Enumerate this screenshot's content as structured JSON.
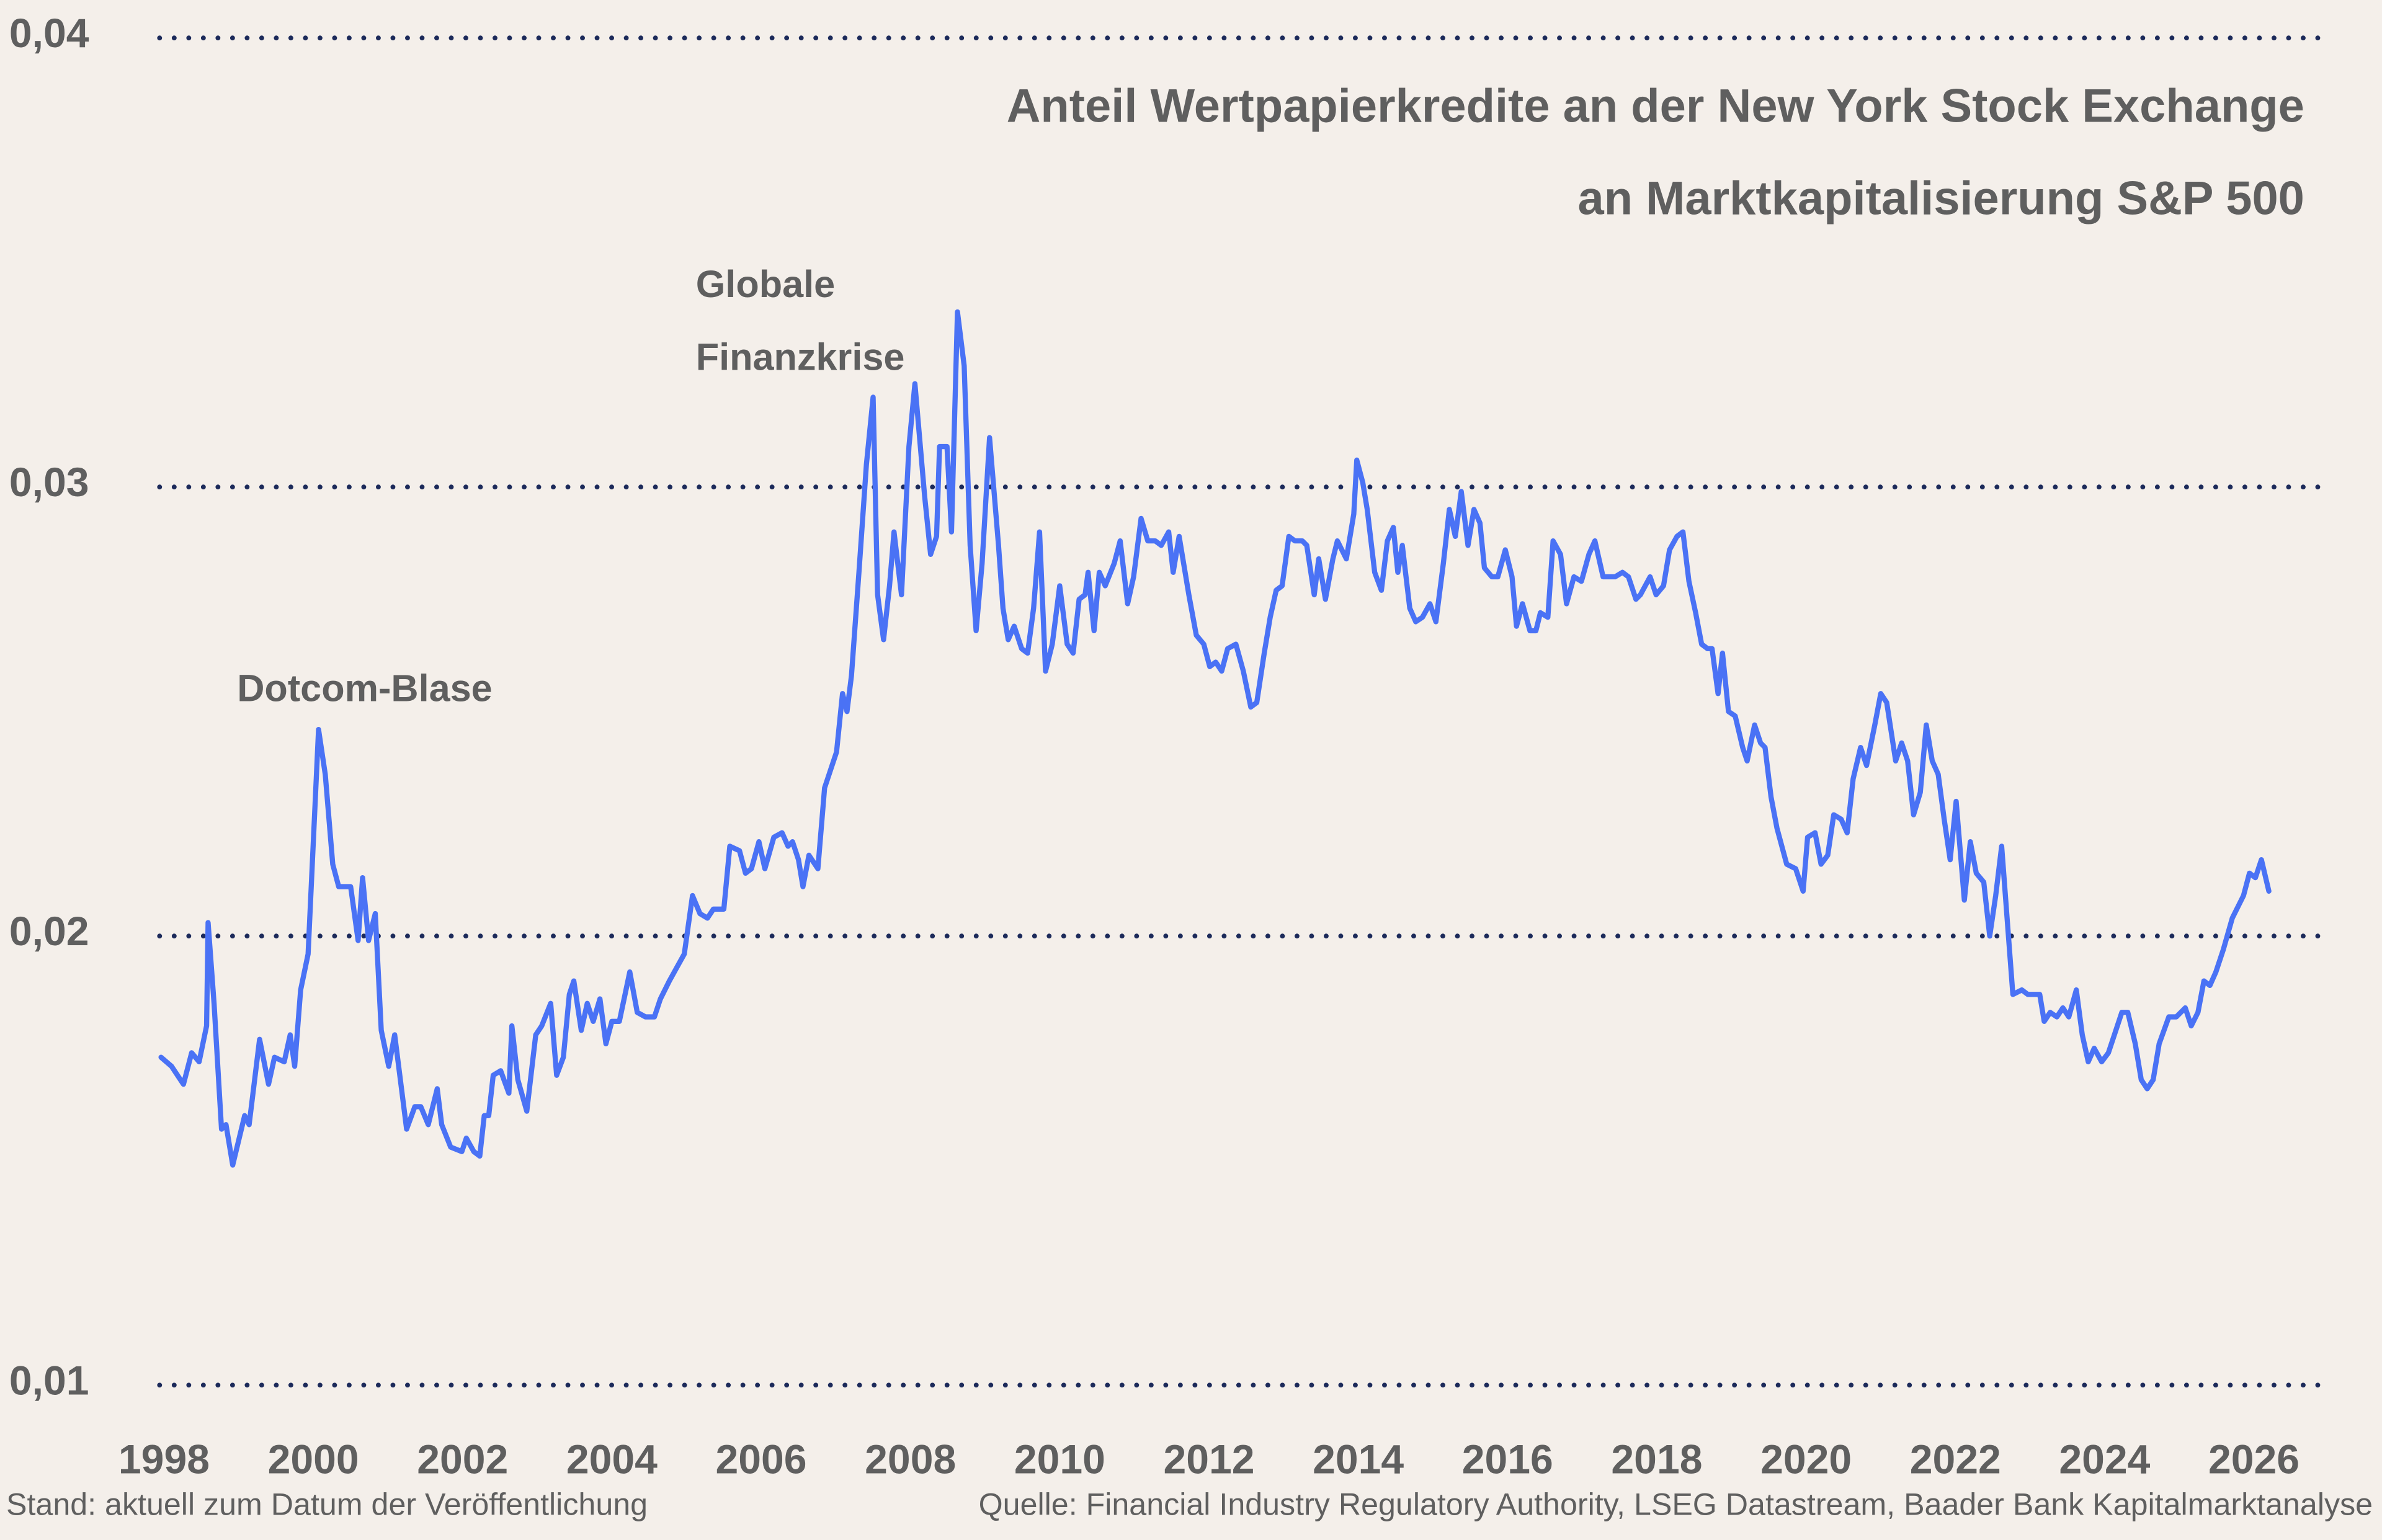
{
  "chart_data": {
    "type": "line",
    "title": [
      "Anteil Wertpapierkredite an der New York Stock Exchange",
      "an Marktkapitalisierung S&P 500"
    ],
    "annotations": [
      "Dotcom-Blase",
      "Globale",
      "Finanzkrise"
    ],
    "note": "Stand: aktuell zum Datum der Veröffentlichung",
    "source": "Quelle: Financial Industry Regulatory Authority, LSEG Datastream, Baader Bank Kapitalmarktanalyse",
    "xlim": [
      1997.9,
      2026.9
    ],
    "xticks": [
      1998,
      2000,
      2002,
      2004,
      2006,
      2008,
      2010,
      2012,
      2014,
      2016,
      2018,
      2020,
      2022,
      2024,
      2026
    ],
    "ylim": [
      0.01,
      0.04
    ],
    "yticks": [
      {
        "value": 0.01,
        "label": "0,01"
      },
      {
        "value": 0.02,
        "label": "0,02"
      },
      {
        "value": 0.03,
        "label": "0,03"
      },
      {
        "value": 0.04,
        "label": "0,04"
      }
    ],
    "grid": true,
    "grid_color": "#1c2a5a",
    "x": [
      1997.96,
      1998.1,
      1998.26,
      1998.37,
      1998.47,
      1998.57,
      1998.59,
      1998.67,
      1998.77,
      1998.83,
      1998.92,
      1999.08,
      1999.14,
      1999.28,
      1999.4,
      1999.48,
      1999.61,
      1999.69,
      1999.75,
      1999.83,
      1999.93,
      2000.07,
      2000.16,
      2000.26,
      2000.34,
      2000.5,
      2000.6,
      2000.66,
      2000.74,
      2000.83,
      2000.91,
      2001.01,
      2001.09,
      2001.25,
      2001.36,
      2001.44,
      2001.54,
      2001.66,
      2001.72,
      2001.84,
      2001.99,
      2002.05,
      2002.15,
      2002.23,
      2002.29,
      2002.35,
      2002.41,
      2002.51,
      2002.62,
      2002.66,
      2002.74,
      2002.86,
      2002.98,
      2003.06,
      2003.18,
      2003.26,
      2003.35,
      2003.43,
      2003.49,
      2003.59,
      2003.67,
      2003.75,
      2003.84,
      2003.92,
      2004.0,
      2004.1,
      2004.24,
      2004.34,
      2004.45,
      2004.57,
      2004.65,
      2004.77,
      2004.87,
      2004.97,
      2005.08,
      2005.18,
      2005.28,
      2005.36,
      2005.5,
      2005.58,
      2005.71,
      2005.79,
      2005.87,
      2005.97,
      2006.05,
      2006.17,
      2006.28,
      2006.36,
      2006.42,
      2006.5,
      2006.56,
      2006.64,
      2006.76,
      2006.85,
      2006.93,
      2007.01,
      2007.09,
      2007.15,
      2007.21,
      2007.31,
      2007.41,
      2007.5,
      2007.56,
      2007.64,
      2007.72,
      2007.78,
      2007.88,
      2007.98,
      2008.06,
      2008.19,
      2008.27,
      2008.35,
      2008.39,
      2008.49,
      2008.55,
      2008.63,
      2008.72,
      2008.8,
      2008.88,
      2008.96,
      2009.06,
      2009.18,
      2009.24,
      2009.31,
      2009.39,
      2009.49,
      2009.57,
      2009.65,
      2009.73,
      2009.81,
      2009.9,
      2010.0,
      2010.1,
      2010.18,
      2010.26,
      2010.34,
      2010.38,
      2010.46,
      2010.53,
      2010.61,
      2010.73,
      2010.81,
      2010.91,
      2010.99,
      2011.09,
      2011.18,
      2011.28,
      2011.36,
      2011.46,
      2011.52,
      2011.6,
      2011.73,
      2011.83,
      2011.93,
      2012.01,
      2012.09,
      2012.17,
      2012.25,
      2012.36,
      2012.46,
      2012.56,
      2012.64,
      2012.74,
      2012.82,
      2012.9,
      2012.98,
      2013.07,
      2013.15,
      2013.25,
      2013.31,
      2013.41,
      2013.47,
      2013.56,
      2013.66,
      2013.72,
      2013.84,
      2013.94,
      2013.98,
      2014.06,
      2014.12,
      2014.22,
      2014.31,
      2014.39,
      2014.47,
      2014.53,
      2014.59,
      2014.69,
      2014.77,
      2014.86,
      2014.96,
      2015.04,
      2015.14,
      2015.22,
      2015.3,
      2015.38,
      2015.47,
      2015.55,
      2015.63,
      2015.69,
      2015.79,
      2015.87,
      2015.97,
      2016.06,
      2016.12,
      2016.2,
      2016.3,
      2016.38,
      2016.44,
      2016.54,
      2016.61,
      2016.71,
      2016.79,
      2016.89,
      2016.99,
      2017.09,
      2017.17,
      2017.28,
      2017.36,
      2017.44,
      2017.54,
      2017.62,
      2017.72,
      2017.78,
      2017.91,
      2017.99,
      2018.09,
      2018.17,
      2018.27,
      2018.35,
      2018.43,
      2018.52,
      2018.6,
      2018.68,
      2018.74,
      2018.82,
      2018.88,
      2018.96,
      2019.05,
      2019.15,
      2019.21,
      2019.31,
      2019.39,
      2019.45,
      2019.53,
      2019.61,
      2019.74,
      2019.86,
      2019.96,
      2020.02,
      2020.12,
      2020.2,
      2020.29,
      2020.37,
      2020.47,
      2020.55,
      2020.63,
      2020.73,
      2020.81,
      2020.92,
      2021.0,
      2021.08,
      2021.2,
      2021.28,
      2021.36,
      2021.44,
      2021.53,
      2021.61,
      2021.69,
      2021.77,
      2021.85,
      2021.93,
      2022.01,
      2022.12,
      2022.2,
      2022.28,
      2022.38,
      2022.46,
      2022.54,
      2022.62,
      2022.77,
      2022.89,
      2022.97,
      2023.13,
      2023.19,
      2023.27,
      2023.36,
      2023.44,
      2023.52,
      2023.62,
      2023.7,
      2023.78,
      2023.86,
      2023.96,
      2024.05,
      2024.13,
      2024.23,
      2024.31,
      2024.41,
      2024.49,
      2024.57,
      2024.65,
      2024.73,
      2024.86,
      2024.96,
      2025.08,
      2025.16,
      2025.25,
      2025.33,
      2025.41,
      2025.49,
      2025.59,
      2025.71,
      2025.8,
      2025.86,
      2025.94,
      2026.02,
      2026.1,
      2026.2
    ],
    "series": [
      {
        "color": "#4a72f5",
        "values": [
          0.0173,
          0.0171,
          0.0167,
          0.0174,
          0.0172,
          0.018,
          0.0203,
          0.0185,
          0.0157,
          0.0158,
          0.0149,
          0.016,
          0.0158,
          0.0177,
          0.0167,
          0.0173,
          0.0172,
          0.0178,
          0.0171,
          0.0188,
          0.0196,
          0.0246,
          0.0236,
          0.0216,
          0.0211,
          0.0211,
          0.0199,
          0.0213,
          0.0199,
          0.0205,
          0.0179,
          0.0171,
          0.0178,
          0.0157,
          0.0162,
          0.0162,
          0.0158,
          0.0166,
          0.0158,
          0.0153,
          0.0152,
          0.0155,
          0.0152,
          0.0151,
          0.016,
          0.016,
          0.0169,
          0.017,
          0.0165,
          0.018,
          0.0168,
          0.0161,
          0.0178,
          0.018,
          0.0185,
          0.0169,
          0.0173,
          0.0187,
          0.019,
          0.0179,
          0.0185,
          0.0181,
          0.0186,
          0.0176,
          0.0181,
          0.0181,
          0.0192,
          0.0183,
          0.0182,
          0.0182,
          0.0186,
          0.019,
          0.0193,
          0.0196,
          0.0209,
          0.0205,
          0.0204,
          0.0206,
          0.0206,
          0.022,
          0.0219,
          0.0214,
          0.0215,
          0.0221,
          0.0215,
          0.0222,
          0.0223,
          0.022,
          0.0221,
          0.0217,
          0.0211,
          0.0218,
          0.0215,
          0.0233,
          0.0237,
          0.0241,
          0.0254,
          0.025,
          0.0258,
          0.0281,
          0.0305,
          0.032,
          0.0276,
          0.0266,
          0.0278,
          0.029,
          0.0276,
          0.0309,
          0.0323,
          0.0298,
          0.0285,
          0.0289,
          0.0309,
          0.0309,
          0.029,
          0.0339,
          0.0327,
          0.0287,
          0.0268,
          0.0283,
          0.0311,
          0.0287,
          0.0273,
          0.0266,
          0.0269,
          0.0264,
          0.0263,
          0.0273,
          0.029,
          0.0259,
          0.0265,
          0.0278,
          0.0265,
          0.0263,
          0.0275,
          0.0276,
          0.0281,
          0.0268,
          0.0281,
          0.0278,
          0.0283,
          0.0288,
          0.0274,
          0.028,
          0.0293,
          0.0288,
          0.0288,
          0.0287,
          0.029,
          0.0281,
          0.0289,
          0.0276,
          0.0267,
          0.0265,
          0.026,
          0.0261,
          0.0259,
          0.0264,
          0.0265,
          0.0259,
          0.0251,
          0.0252,
          0.0263,
          0.0271,
          0.0277,
          0.0278,
          0.0289,
          0.0288,
          0.0288,
          0.0287,
          0.0276,
          0.0284,
          0.0275,
          0.0284,
          0.0288,
          0.0284,
          0.0294,
          0.0306,
          0.0301,
          0.0295,
          0.0281,
          0.0277,
          0.0288,
          0.0291,
          0.0281,
          0.0287,
          0.0273,
          0.027,
          0.0271,
          0.0274,
          0.027,
          0.0283,
          0.0295,
          0.0289,
          0.0299,
          0.0287,
          0.0295,
          0.0292,
          0.0282,
          0.028,
          0.028,
          0.0286,
          0.028,
          0.0269,
          0.0274,
          0.0268,
          0.0268,
          0.0272,
          0.0271,
          0.0288,
          0.0285,
          0.0274,
          0.028,
          0.0279,
          0.0285,
          0.0288,
          0.028,
          0.028,
          0.028,
          0.0281,
          0.028,
          0.0275,
          0.0276,
          0.028,
          0.0276,
          0.0278,
          0.0286,
          0.0289,
          0.029,
          0.0279,
          0.0272,
          0.0265,
          0.0264,
          0.0264,
          0.0254,
          0.0263,
          0.025,
          0.0249,
          0.0242,
          0.0239,
          0.0247,
          0.0243,
          0.0242,
          0.0231,
          0.0224,
          0.0216,
          0.0215,
          0.021,
          0.0222,
          0.0223,
          0.0216,
          0.0218,
          0.0227,
          0.0226,
          0.0223,
          0.0235,
          0.0242,
          0.0238,
          0.0247,
          0.0254,
          0.0252,
          0.0239,
          0.0243,
          0.0239,
          0.0227,
          0.0232,
          0.0247,
          0.0239,
          0.0236,
          0.0226,
          0.0217,
          0.023,
          0.0208,
          0.0221,
          0.0214,
          0.0212,
          0.02,
          0.0209,
          0.022,
          0.0187,
          0.0188,
          0.0187,
          0.0187,
          0.0181,
          0.0183,
          0.0182,
          0.0184,
          0.0182,
          0.0188,
          0.0178,
          0.0172,
          0.0175,
          0.0172,
          0.0174,
          0.0178,
          0.0183,
          0.0183,
          0.0176,
          0.0168,
          0.0166,
          0.0168,
          0.0176,
          0.0182,
          0.0182,
          0.0184,
          0.018,
          0.0183,
          0.019,
          0.0189,
          0.0192,
          0.0197,
          0.0204,
          0.0207,
          0.0209,
          0.0214,
          0.0213,
          0.0217,
          0.021
        ]
      }
    ]
  }
}
